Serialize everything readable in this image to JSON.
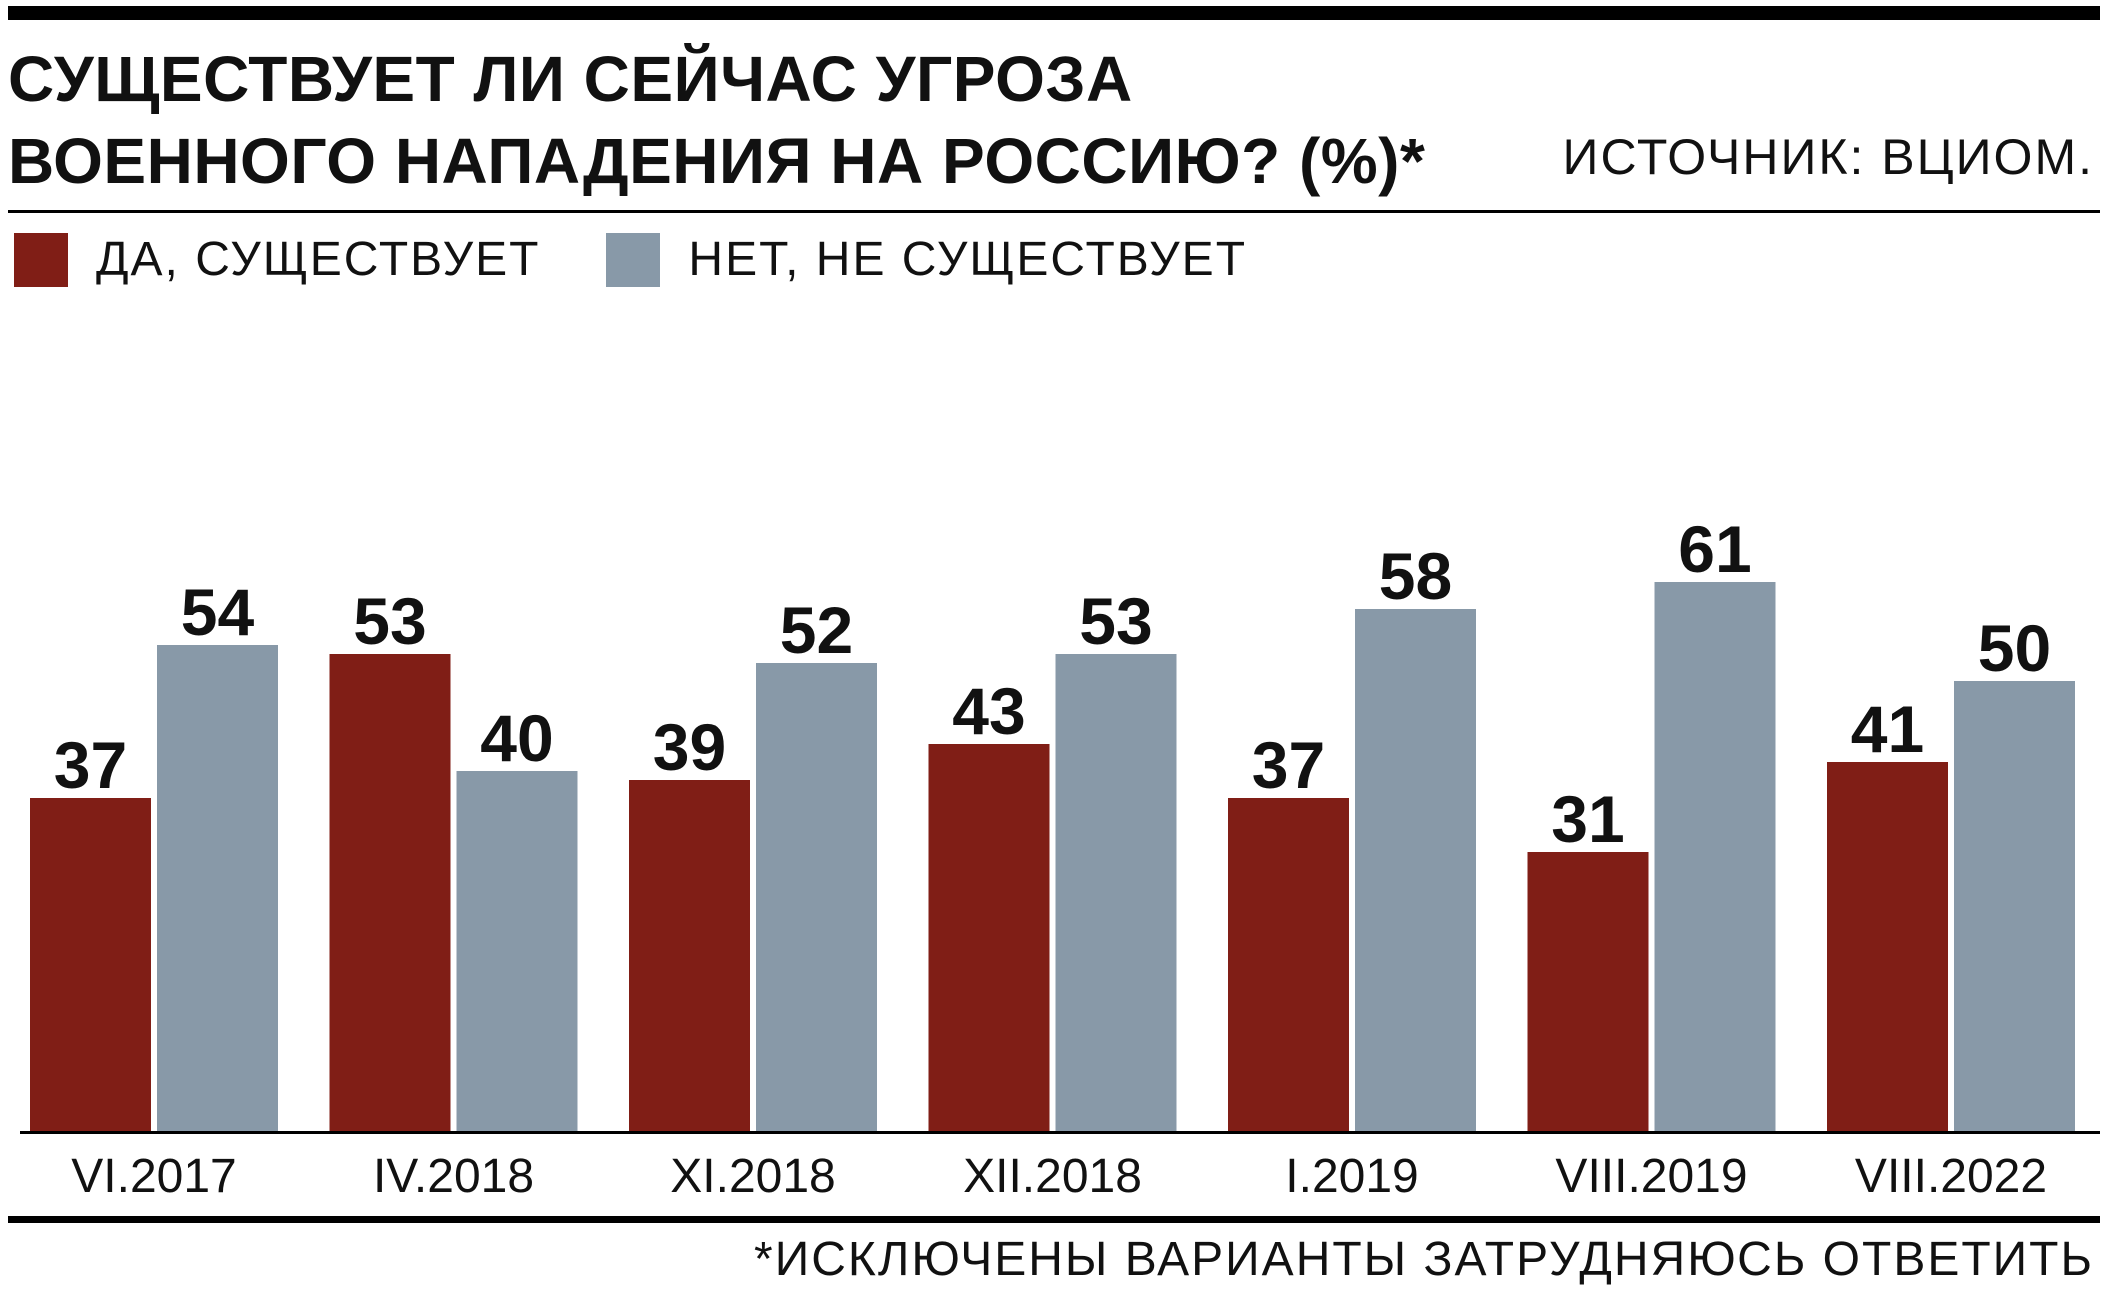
{
  "header": {
    "title_line1": "СУЩЕСТВУЕТ ЛИ СЕЙЧАС УГРОЗА",
    "title_line2": "ВОЕННОГО НАПАДЕНИЯ НА РОССИЮ? (%)*",
    "source": "ИСТОЧНИК: ВЦИОМ."
  },
  "legend": [
    {
      "label": "ДА, СУЩЕСТВУЕТ",
      "color": "#801e16"
    },
    {
      "label": "НЕТ, НЕ СУЩЕСТВУЕТ",
      "color": "#8899a8"
    }
  ],
  "footnote": "*ИСКЛЮЧЕНЫ ВАРИАНТЫ ЗАТРУДНЯЮСЬ ОТВЕТИТЬ",
  "chart_data": {
    "type": "bar",
    "categories": [
      "VI.2017",
      "IV.2018",
      "XI.2018",
      "XII.2018",
      "I.2019",
      "VIII.2019",
      "VIII.2022"
    ],
    "series": [
      {
        "name": "ДА, СУЩЕСТВУЕТ",
        "color": "#801e16",
        "values": [
          37,
          53,
          39,
          43,
          37,
          31,
          41
        ]
      },
      {
        "name": "НЕТ, НЕ СУЩЕСТВУЕТ",
        "color": "#8899a8",
        "values": [
          54,
          40,
          52,
          53,
          58,
          61,
          50
        ]
      }
    ],
    "ylim": [
      0,
      61
    ],
    "grid": false,
    "legend_position": "top-left"
  }
}
